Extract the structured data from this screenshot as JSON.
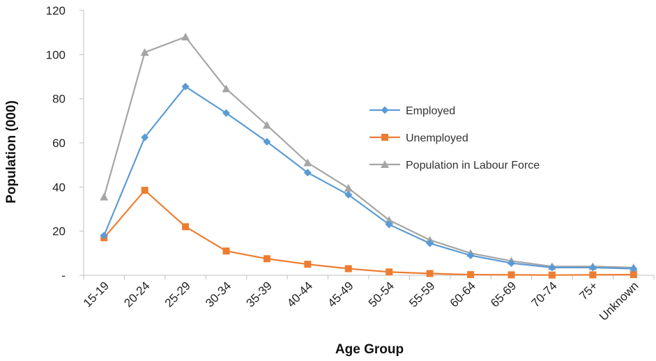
{
  "chart_data": {
    "type": "line",
    "title": "",
    "xlabel": "Age Group",
    "ylabel": "Population (000)",
    "ylim": [
      0,
      120
    ],
    "yticks": [
      0,
      20,
      40,
      60,
      80,
      100,
      120
    ],
    "ytick_labels": [
      "-",
      "20",
      "40",
      "60",
      "80",
      "100",
      "120"
    ],
    "categories": [
      "15-19",
      "20-24",
      "25-29",
      "30-34",
      "35-39",
      "40-44",
      "45-49",
      "50-54",
      "55-59",
      "60-64",
      "65-69",
      "70-74",
      "75+",
      "Unknown"
    ],
    "grid": false,
    "legend_position": "right",
    "series": [
      {
        "name": "Employed",
        "color": "#5b9bd5",
        "marker": "diamond",
        "values": [
          18,
          62.5,
          85.5,
          73.5,
          60.5,
          46.5,
          36.5,
          23,
          14.5,
          9,
          5.5,
          3.5,
          3.5,
          3
        ]
      },
      {
        "name": "Unemployed",
        "color": "#ed7d31",
        "marker": "square",
        "values": [
          17,
          38.5,
          22,
          11,
          7.5,
          5,
          3,
          1.5,
          0.8,
          0.3,
          0.2,
          0.1,
          0.2,
          0.3
        ]
      },
      {
        "name": "Population in Labour Force",
        "color": "#a5a5a5",
        "marker": "triangle",
        "values": [
          35.5,
          101,
          108,
          84.5,
          68,
          51,
          39.5,
          25,
          16,
          10,
          6.5,
          4,
          4,
          3.5
        ]
      }
    ]
  }
}
